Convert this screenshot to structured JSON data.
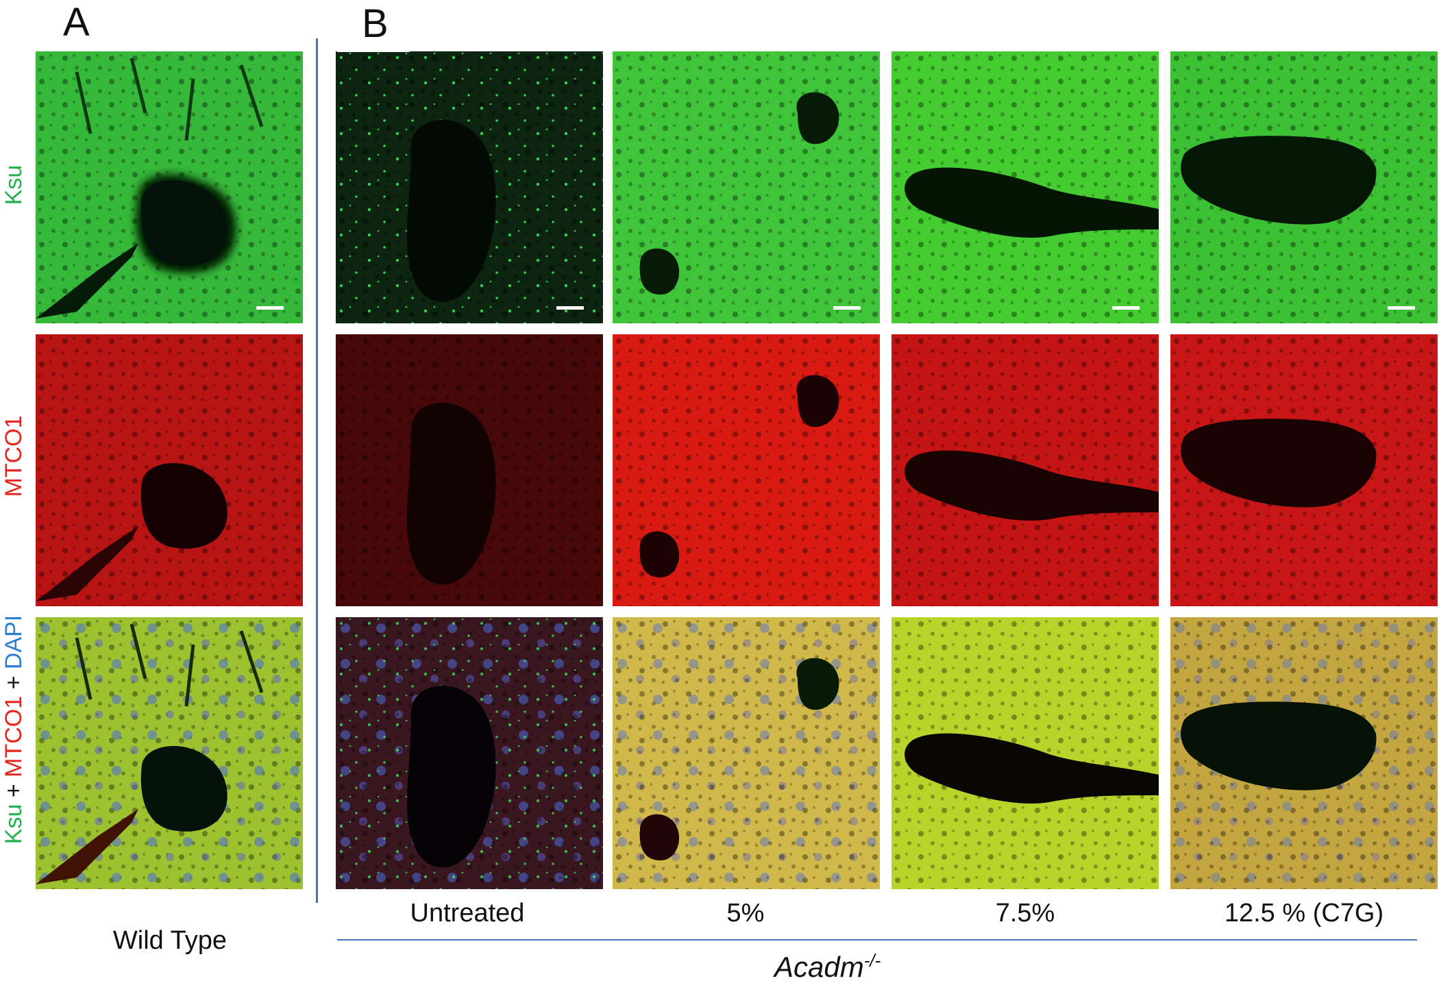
{
  "panels": {
    "a": "A",
    "b": "B"
  },
  "row_labels": {
    "ksu": "Ksu",
    "mtco1": "MTCO1",
    "merge": {
      "ksu": "Ksu",
      "plus1": " + ",
      "mtco1": "MTCO1",
      "plus2": " + ",
      "dapi": "DAPI"
    }
  },
  "column_labels": {
    "wild_type": "Wild Type",
    "untreated": "Untreated",
    "five": "5%",
    "seven_five": "7.5%",
    "twelve_five": "12.5 % (C7G)"
  },
  "genotype": {
    "name": "Acadm",
    "superscript": "-/-"
  },
  "colors": {
    "ksu_label": "#22b24c",
    "mtco1_label": "#e8241c",
    "dapi_label": "#2e7fd4",
    "divider": "#4a72b8",
    "green_tissue": "#3fc43a",
    "red_tissue": "#c41414",
    "merge_tissue": "#b9cf34",
    "untreated_green": "#0d2a10",
    "untreated_red": "#4a0808",
    "untreated_merge": "#3a1a22"
  },
  "icons": [
    "scale-bar"
  ]
}
